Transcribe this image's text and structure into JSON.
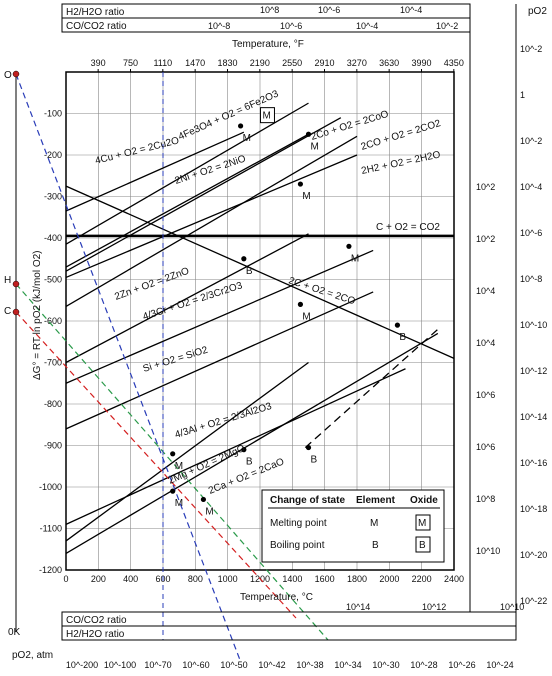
{
  "chart_data": {
    "type": "line",
    "ylabel": "ΔG° = RT ln pO2 (kJ/mol O2)",
    "xlabel": "Temperature, °C",
    "top_temperature_label": "Temperature, °F",
    "xlim": [
      0,
      2400
    ],
    "ylim": [
      -1200,
      0
    ],
    "x_ticks": [
      "0",
      "200",
      "400",
      "600",
      "800",
      "1000",
      "1200",
      "1400",
      "1600",
      "1800",
      "2000",
      "2200",
      "2400"
    ],
    "y_ticks": [
      "-100",
      "-200",
      "-300",
      "-400",
      "-500",
      "-600",
      "-700",
      "-800",
      "-900",
      "-1000",
      "-1100",
      "-1200"
    ],
    "f_ticks": [
      "390",
      "750",
      "1110",
      "1470",
      "1830",
      "2190",
      "2550",
      "2910",
      "3270",
      "3630",
      "3990",
      "4350"
    ],
    "grid": true,
    "series": [
      {
        "name": "4Cu + O2 = 2Cu2O",
        "x": [
          0,
          1100
        ],
        "y": [
          -335,
          -145
        ]
      },
      {
        "name": "4Fe3O4 + O2 = 6Fe2O3",
        "x": [
          0,
          1500
        ],
        "y": [
          -415,
          -75
        ]
      },
      {
        "name": "2Co + O2 = 2CoO",
        "x": [
          0,
          1500
        ],
        "y": [
          -470,
          -150
        ]
      },
      {
        "name": "2Ni + O2 = 2NiO",
        "x": [
          0,
          1700
        ],
        "y": [
          -480,
          -110
        ]
      },
      {
        "name": "2CO + O2 = 2CO2",
        "x": [
          0,
          1800
        ],
        "y": [
          -565,
          -155
        ]
      },
      {
        "name": "2H2 + O2 = 2H2O",
        "x": [
          0,
          1800
        ],
        "y": [
          -495,
          -200
        ]
      },
      {
        "name": "C + O2 = CO2",
        "x": [
          0,
          2400
        ],
        "y": [
          -395,
          -395
        ]
      },
      {
        "name": "2Zn + O2 = 2ZnO",
        "x": [
          0,
          1500
        ],
        "y": [
          -700,
          -390
        ]
      },
      {
        "name": "4/3Cr + O2 = 2/3Cr2O3",
        "x": [
          0,
          1900
        ],
        "y": [
          -750,
          -430
        ]
      },
      {
        "name": "2C + O2 = 2CO",
        "x": [
          0,
          2400
        ],
        "y": [
          -275,
          -690
        ]
      },
      {
        "name": "Si + O2 = SiO2",
        "x": [
          0,
          1900
        ],
        "y": [
          -860,
          -530
        ]
      },
      {
        "name": "4/3Al + O2 = 2/3Al2O3",
        "x": [
          0,
          2100
        ],
        "y": [
          -1090,
          -715
        ]
      },
      {
        "name": "2Mg + O2 = 2MgO",
        "x": [
          0,
          1500
        ],
        "y": [
          -1130,
          -700
        ]
      },
      {
        "name": "2Ca + O2 = 2CaO",
        "x": [
          0,
          2300
        ],
        "y": [
          -1160,
          -630
        ]
      }
    ],
    "annotations": {
      "title_labels": [
        "H2/H2O ratio",
        "CO/CO2 ratio",
        "pO2"
      ],
      "top_h2_ratio_ticks": [
        "10^8",
        "10^-6",
        "10^-4"
      ],
      "top_co_ratio_ticks": [
        "10^-8",
        "10^-6",
        "10^-4",
        "10^-2"
      ],
      "right_po2_ticks": [
        "10^-2",
        "1",
        "10^-2",
        "10^-4",
        "10^-6",
        "10^-8",
        "10^-10",
        "10^-12",
        "10^-14",
        "10^-16",
        "10^-18",
        "10^-20",
        "10^-22"
      ],
      "right_co_ratio_ticks": [
        "10^2",
        "10^2",
        "10^4",
        "10^4",
        "10^6",
        "10^6",
        "10^8",
        "10^10"
      ],
      "bottom_co_ratio_ticks": [
        "10^14",
        "10^12",
        "10^10"
      ],
      "bottom_po2_ticks": [
        "10^-200",
        "10^-100",
        "10^-70",
        "10^-60",
        "10^-50",
        "10^-42",
        "10^-38",
        "10^-34",
        "10^-30",
        "10^-28",
        "10^-26",
        "10^-24"
      ],
      "origin_labels": [
        "O",
        "H",
        "C",
        "0K"
      ],
      "bottom_labels": {
        "co_ratio": "CO/CO2 ratio",
        "h2_ratio": "H2/H2O ratio",
        "po2": "pO2, atm"
      }
    },
    "legend": {
      "placement": "bottom-right",
      "headers": [
        "Change of state",
        "Element",
        "Oxide"
      ],
      "rows": [
        {
          "label": "Melting point",
          "element": "M",
          "oxide": "M"
        },
        {
          "label": "Boiling point",
          "element": "B",
          "oxide": "B"
        }
      ]
    },
    "rxn_text": {
      "cu": "4Cu + O2 = 2Cu2O",
      "fe": "4Fe3O4 + O2 = 6Fe2O3",
      "co": "2Co + O2 = 2CoO",
      "ni": "2Ni + O2 = 2NiO",
      "co2": "2CO + O2 = 2CO2",
      "h2": "2H2 + O2 = 2H2O",
      "c_co2": "C + O2 = CO2",
      "zn": "2Zn + O2 = 2ZnO",
      "cr": "4/3Cr + O2 = 2/3Cr2O3",
      "c_co": "2C + O2 = 2CO",
      "si": "Si + O2 = SiO2",
      "al": "4/3Al + O2 = 2/3Al2O3",
      "mg": "2Mg + O2 = 2MgO",
      "ca": "2Ca + O2 = 2CaO"
    }
  }
}
